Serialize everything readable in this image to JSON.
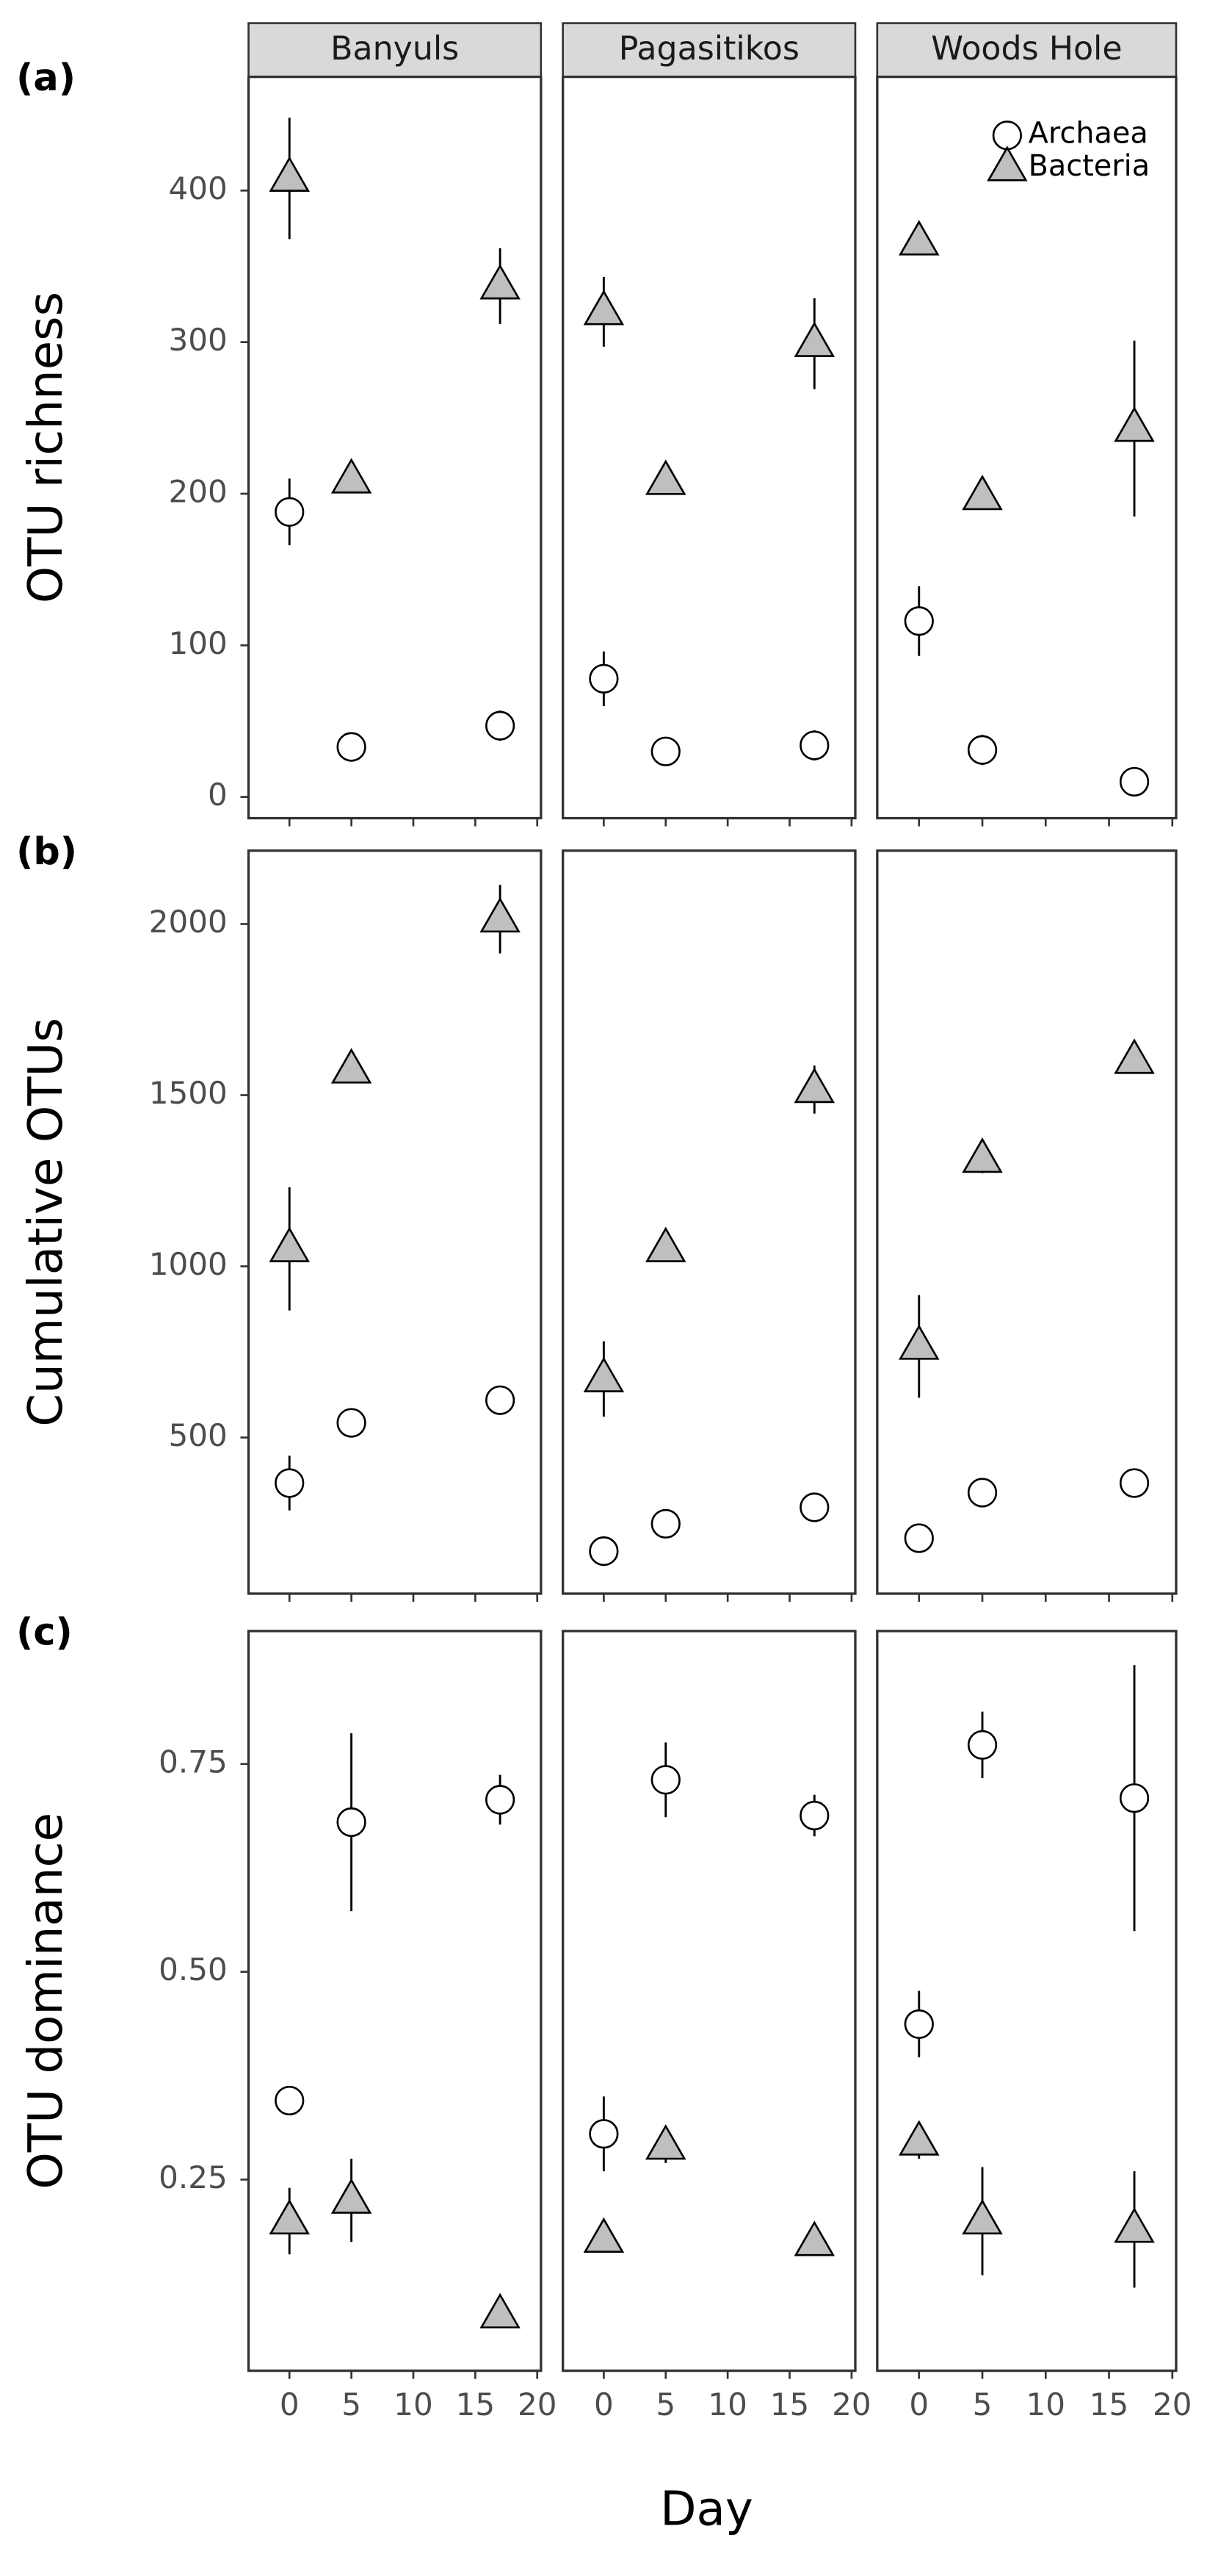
{
  "facets": [
    "Banyuls",
    "Pagasitikos",
    "Woods Hole"
  ],
  "series": [
    {
      "name": "Archaea",
      "marker": "circle",
      "color": "#ffffff"
    },
    {
      "name": "Bacteria",
      "marker": "triangle",
      "color": "#bfbfbf"
    }
  ],
  "legend": "top-right",
  "xlabel": "Day",
  "x": [
    0,
    5,
    17
  ],
  "xlim": [
    -3.3,
    20.3
  ],
  "xticks": [
    0,
    5,
    10,
    15,
    20
  ],
  "chart_data": [
    {
      "type": "scatter",
      "label": "(a)",
      "ylabel": "OTU richness",
      "ylim": [
        -14,
        475
      ],
      "yticks": [
        0,
        100,
        200,
        300,
        400
      ],
      "panels": [
        [
          {
            "values": [
              188,
              33,
              47
            ],
            "errors": [
              22,
              3,
              10
            ]
          },
          {
            "values": [
              408,
              209,
              337
            ],
            "errors": [
              40,
              5,
              25
            ]
          }
        ],
        [
          {
            "values": [
              78,
              30,
              34
            ],
            "errors": [
              18,
              3,
              10
            ]
          },
          {
            "values": [
              320,
              208,
              299
            ],
            "errors": [
              23,
              3,
              30
            ]
          }
        ],
        [
          {
            "values": [
              116,
              31,
              10
            ],
            "errors": [
              23,
              10,
              2
            ]
          },
          {
            "values": [
              366,
              198,
              243
            ],
            "errors": [
              3,
              8,
              58
            ]
          }
        ]
      ]
    },
    {
      "type": "scatter",
      "label": "(b)",
      "ylabel": "Cumulative OTUs",
      "ylim": [
        44,
        2214
      ],
      "yticks": [
        500,
        1000,
        1500,
        2000
      ],
      "panels": [
        [
          {
            "values": [
              367,
              543,
              609
            ],
            "errors": [
              80,
              10,
              5
            ]
          },
          {
            "values": [
              1051,
              1573,
              2014
            ],
            "errors": [
              180,
              20,
              100
            ]
          }
        ],
        [
          {
            "values": [
              168,
              248,
              296
            ],
            "errors": [
              10,
              10,
              5
            ]
          },
          {
            "values": [
              671,
              1051,
              1516
            ],
            "errors": [
              110,
              30,
              70
            ]
          }
        ],
        [
          {
            "values": [
              206,
              339,
              367
            ],
            "errors": [
              40,
              15,
              5
            ]
          },
          {
            "values": [
              766,
              1312,
              1601
            ],
            "errors": [
              150,
              40,
              30
            ]
          }
        ]
      ]
    },
    {
      "type": "scatter",
      "label": "(c)",
      "ylabel": "OTU dominance",
      "ylim": [
        0.02,
        0.91
      ],
      "yticks": [
        {
          "value": 0.25,
          "label": "0.25"
        },
        {
          "value": 0.5,
          "label": "0.50"
        },
        {
          "value": 0.75,
          "label": "0.75"
        }
      ],
      "panels": [
        [
          {
            "values": [
              0.345,
              0.68,
              0.707
            ],
            "errors": [
              0.005,
              0.107,
              0.03
            ]
          },
          {
            "values": [
              0.2,
              0.225,
              0.087
            ],
            "errors": [
              0.04,
              0.05,
              0.015
            ]
          }
        ],
        [
          {
            "values": [
              0.305,
              0.731,
              0.688
            ],
            "errors": [
              0.045,
              0.045,
              0.025
            ]
          },
          {
            "values": [
              0.178,
              0.29,
              0.174
            ],
            "errors": [
              0.01,
              0.02,
              0.01
            ]
          }
        ],
        [
          {
            "values": [
              0.437,
              0.773,
              0.709
            ],
            "errors": [
              0.04,
              0.04,
              0.16
            ]
          },
          {
            "values": [
              0.295,
              0.2,
              0.19
            ],
            "errors": [
              0.02,
              0.065,
              0.07
            ]
          }
        ]
      ]
    }
  ]
}
